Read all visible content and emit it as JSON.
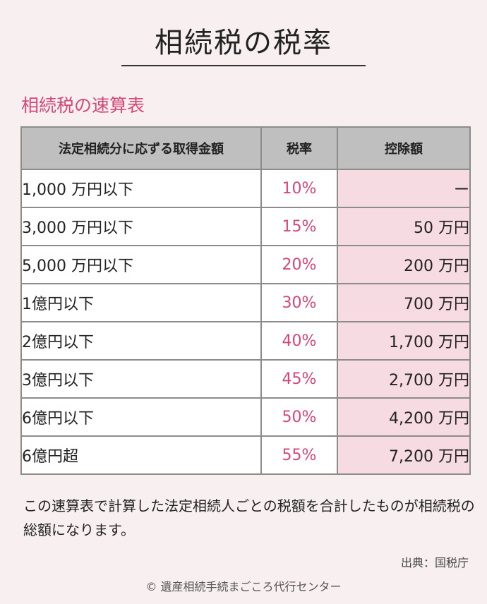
{
  "title": "相続税の税率",
  "subtitle": "相続税の速算表",
  "table": {
    "headers": [
      "法定相続分に応ずる取得金額",
      "税率",
      "控除額"
    ],
    "rows": [
      {
        "amount": "1,000 万円以下",
        "rate": "10%",
        "deduction": "ー"
      },
      {
        "amount": "3,000 万円以下",
        "rate": "15%",
        "deduction": "50 万円"
      },
      {
        "amount": "5,000 万円以下",
        "rate": "20%",
        "deduction": "200 万円"
      },
      {
        "amount": "1億円以下",
        "rate": "30%",
        "deduction": "700 万円"
      },
      {
        "amount": "2億円以下",
        "rate": "40%",
        "deduction": "1,700 万円"
      },
      {
        "amount": "3億円以下",
        "rate": "45%",
        "deduction": "2,700 万円"
      },
      {
        "amount": "6億円以下",
        "rate": "50%",
        "deduction": "4,200 万円"
      },
      {
        "amount": "6億円超",
        "rate": "55%",
        "deduction": "7,200 万円"
      }
    ]
  },
  "note": "この速算表で計算した法定相続人ごとの税額を合計したものが相続税の総額になります。",
  "source": "出典：国税庁",
  "copyright": "© 遺産相続手続まごころ代行センター",
  "colors": {
    "background": "#f7eff0",
    "accent": "#d44878",
    "header_bg": "#bfbfbf",
    "deduction_bg": "#f7dbe2"
  }
}
